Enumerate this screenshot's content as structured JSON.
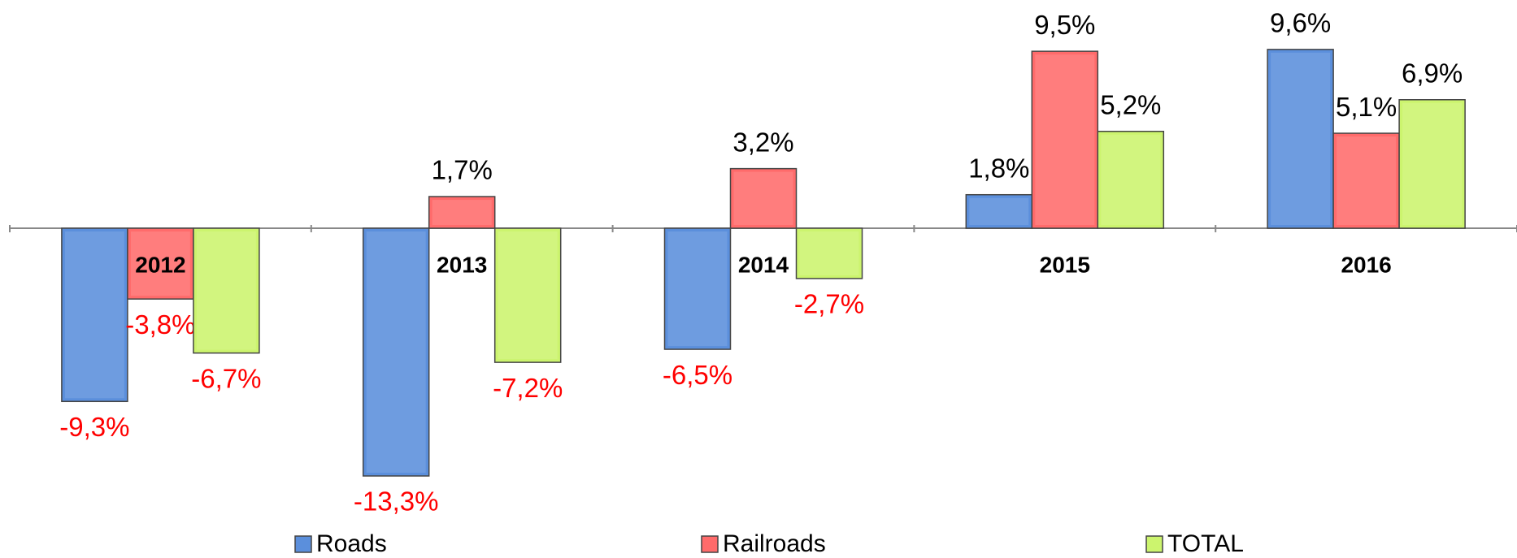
{
  "chart_data": {
    "type": "bar",
    "categories": [
      "2012",
      "2013",
      "2014",
      "2015",
      "2016"
    ],
    "series": [
      {
        "name": "Roads",
        "color": "#5b8fdc",
        "values": [
          -9.3,
          -13.3,
          -6.5,
          1.8,
          9.6
        ],
        "value_labels": [
          "-9,3%",
          "-13,3%",
          "-6,5%",
          "1,8%",
          "9,6%"
        ]
      },
      {
        "name": "Railroads",
        "color": "#ff6b6b",
        "values": [
          -3.8,
          1.7,
          3.2,
          9.5,
          5.1
        ],
        "value_labels": [
          "-3,8%",
          "1,7%",
          "3,2%",
          "9,5%",
          "5,1%"
        ]
      },
      {
        "name": "TOTAL",
        "color": "#ccf46e",
        "values": [
          -6.7,
          -7.2,
          -2.7,
          5.2,
          6.9
        ],
        "value_labels": [
          "-6,7%",
          "-7,2%",
          "-2,7%",
          "5,2%",
          "6,9%"
        ]
      }
    ],
    "legend": "bottom"
  }
}
